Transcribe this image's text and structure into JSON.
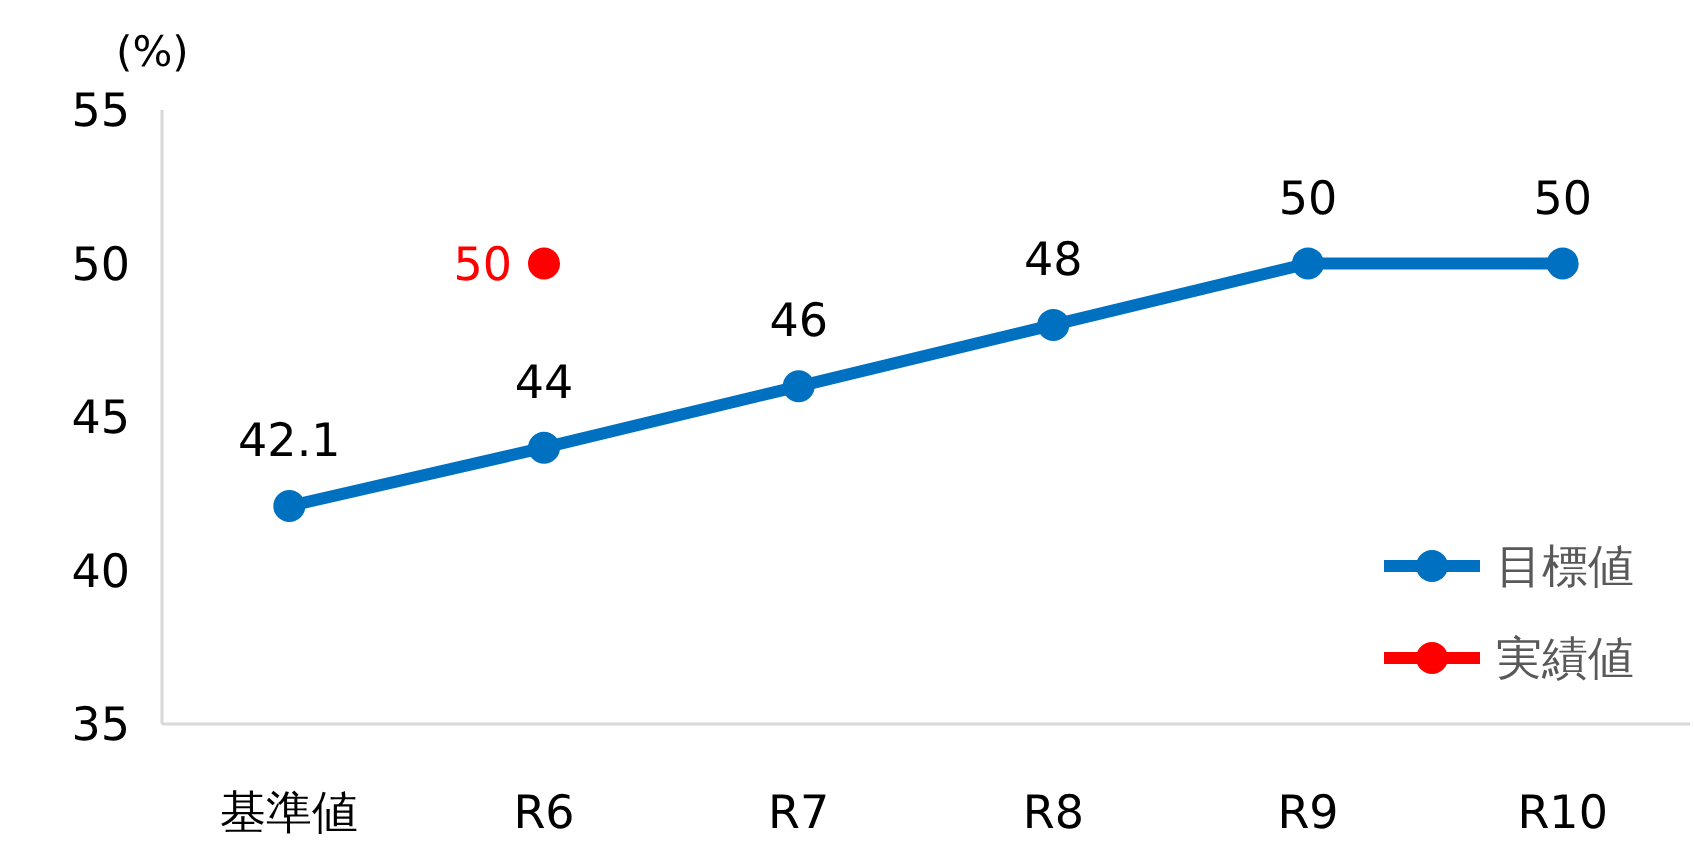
{
  "chart_data": {
    "type": "line",
    "ylabel": "(%)",
    "categories": [
      "基準値",
      "R6",
      "R7",
      "R8",
      "R9",
      "R10"
    ],
    "ylim": [
      35,
      55
    ],
    "yticks": [
      35,
      40,
      45,
      50,
      55
    ],
    "grid": false,
    "legend": "bottom right",
    "marker": "circle",
    "data_labels": true,
    "series": [
      {
        "name": "目標値",
        "color": "#0070c0",
        "values": [
          42.1,
          44,
          46,
          48,
          50,
          50
        ]
      },
      {
        "name": "実績値",
        "color": "#ff0000",
        "type": "scatter",
        "values": [
          null,
          50,
          null,
          null,
          null,
          null
        ]
      }
    ]
  }
}
